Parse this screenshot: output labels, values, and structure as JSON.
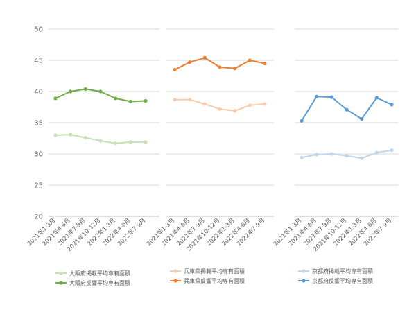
{
  "chart_data": {
    "type": "line",
    "ylim": [
      20,
      50
    ],
    "yticks": [
      20,
      25,
      30,
      35,
      40,
      45,
      50
    ],
    "grid": true,
    "legend_position": "bottom",
    "panels": [
      {
        "name": "osaka",
        "categories": [
          "2021年1-3月",
          "2021年4-6月",
          "2021年7-9月",
          "2021年10-12月",
          "2022年1-3月",
          "2022年4-6月",
          "2022年7-9月"
        ],
        "series": [
          {
            "name": "大阪府掲載平均専有面積",
            "color": "#c5e0b4",
            "values": [
              33.0,
              33.1,
              32.6,
              32.1,
              31.7,
              31.9,
              31.9
            ]
          },
          {
            "name": "大阪府反響平均専有面積",
            "color": "#70ad47",
            "values": [
              38.9,
              40.0,
              40.4,
              40.0,
              38.9,
              38.4,
              38.5
            ]
          }
        ]
      },
      {
        "name": "hyogo",
        "categories": [
          "2021年1-3月",
          "2021年4-6月",
          "2021年7-9月",
          "2021年10-12月",
          "2022年1-3月",
          "2022年4-6月",
          "2022年7-9月"
        ],
        "series": [
          {
            "name": "兵庫県掲載平均専有面積",
            "color": "#f8cbad",
            "values": [
              38.7,
              38.7,
              38.0,
              37.2,
              36.9,
              37.8,
              38.0
            ]
          },
          {
            "name": "兵庫県反響平均専有面積",
            "color": "#ed7d31",
            "values": [
              43.5,
              44.7,
              45.4,
              43.9,
              43.7,
              45.0,
              44.5
            ]
          }
        ]
      },
      {
        "name": "kyoto",
        "categories": [
          "2021年1-3月",
          "2021年4-6月",
          "2021年7-9月",
          "2021年10-12月",
          "2022年1-3月",
          "2022年4-6月",
          "2022年7-9月"
        ],
        "series": [
          {
            "name": "京都府掲載平均専有面積",
            "color": "#bdd7ee",
            "values": [
              29.4,
              29.9,
              30.0,
              29.7,
              29.3,
              30.2,
              30.6
            ]
          },
          {
            "name": "京都府反響平均専有面積",
            "color": "#5b9bd5",
            "values": [
              35.3,
              39.2,
              39.1,
              37.1,
              35.6,
              39.0,
              37.9
            ]
          }
        ]
      }
    ]
  }
}
